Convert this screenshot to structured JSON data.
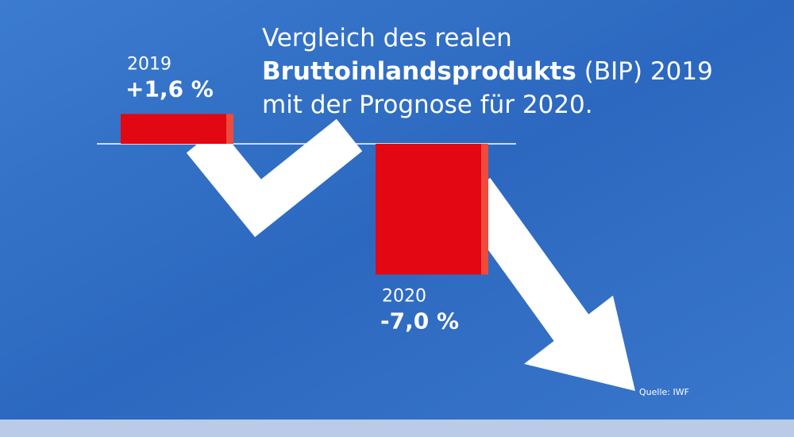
{
  "chart_data": {
    "type": "bar",
    "title": [
      "Vergleich des realen",
      "Bruttoinlandsprodukts",
      "(BIP) 2019",
      "mit der Prognose für 2020."
    ],
    "categories": [
      "2019",
      "2020"
    ],
    "values": [
      1.6,
      -7.0
    ],
    "value_labels": [
      "+1,6 %",
      "-7,0 %"
    ],
    "color": "#e30613",
    "source": "Quelle: IWF"
  }
}
